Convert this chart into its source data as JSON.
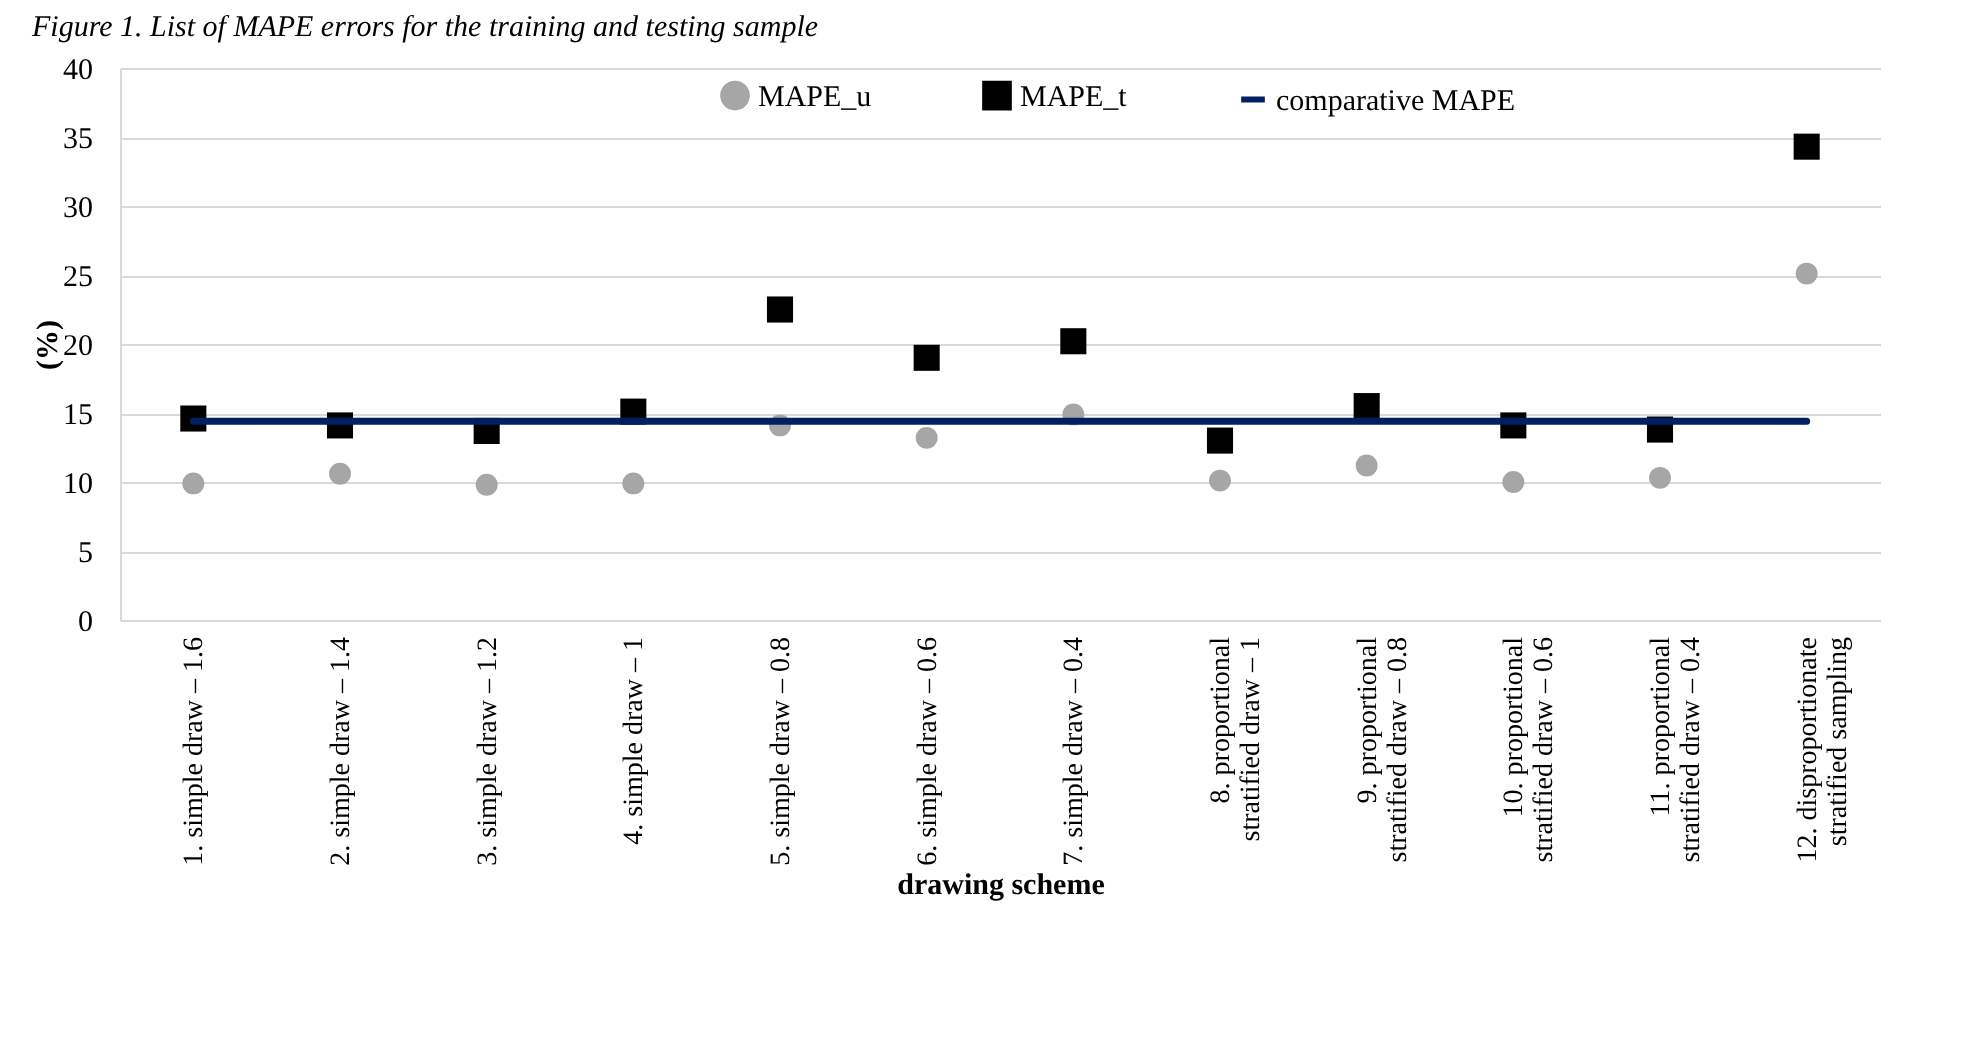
{
  "chart_data": {
    "type": "scatter",
    "title": "Figure 1. List of MAPE errors for the training and testing sample",
    "xlabel": "drawing scheme",
    "ylabel": "(%)",
    "categories": [
      "1. simple draw – 1.6",
      "2. simple draw – 1.4",
      "3. simple draw – 1.2",
      "4. simple draw – 1",
      "5. simple draw – 0.8",
      "6. simple draw – 0.6",
      "7. simple draw – 0.4",
      "8. proportional stratified draw – 1",
      "9. proportional stratified draw – 0.8",
      "10. proportional stratified draw – 0.6",
      "11. proportional stratified draw – 0.4",
      "12. disproportionate stratified sampling"
    ],
    "series": [
      {
        "name": "MAPE_u",
        "marker": "circle",
        "color": "#a6a6a6",
        "values": [
          9.9,
          10.6,
          9.8,
          9.9,
          14.1,
          13.2,
          14.9,
          10.1,
          11.2,
          10.0,
          10.3,
          25.1
        ]
      },
      {
        "name": "MAPE_t",
        "marker": "square",
        "color": "#000000",
        "values": [
          14.6,
          14.1,
          13.7,
          15.1,
          22.5,
          19.0,
          20.2,
          13.0,
          15.5,
          14.1,
          13.8,
          34.3
        ]
      },
      {
        "name": "comparative MAPE",
        "type": "line",
        "color": "#002060",
        "values": [
          14.4,
          14.4,
          14.4,
          14.4,
          14.4,
          14.4,
          14.4,
          14.4,
          14.4,
          14.4,
          14.4,
          14.4
        ]
      }
    ],
    "ylim": [
      0,
      40
    ],
    "yticks": [
      0,
      5,
      10,
      15,
      20,
      25,
      30,
      35,
      40
    ],
    "grid": "y",
    "legend": "top"
  }
}
